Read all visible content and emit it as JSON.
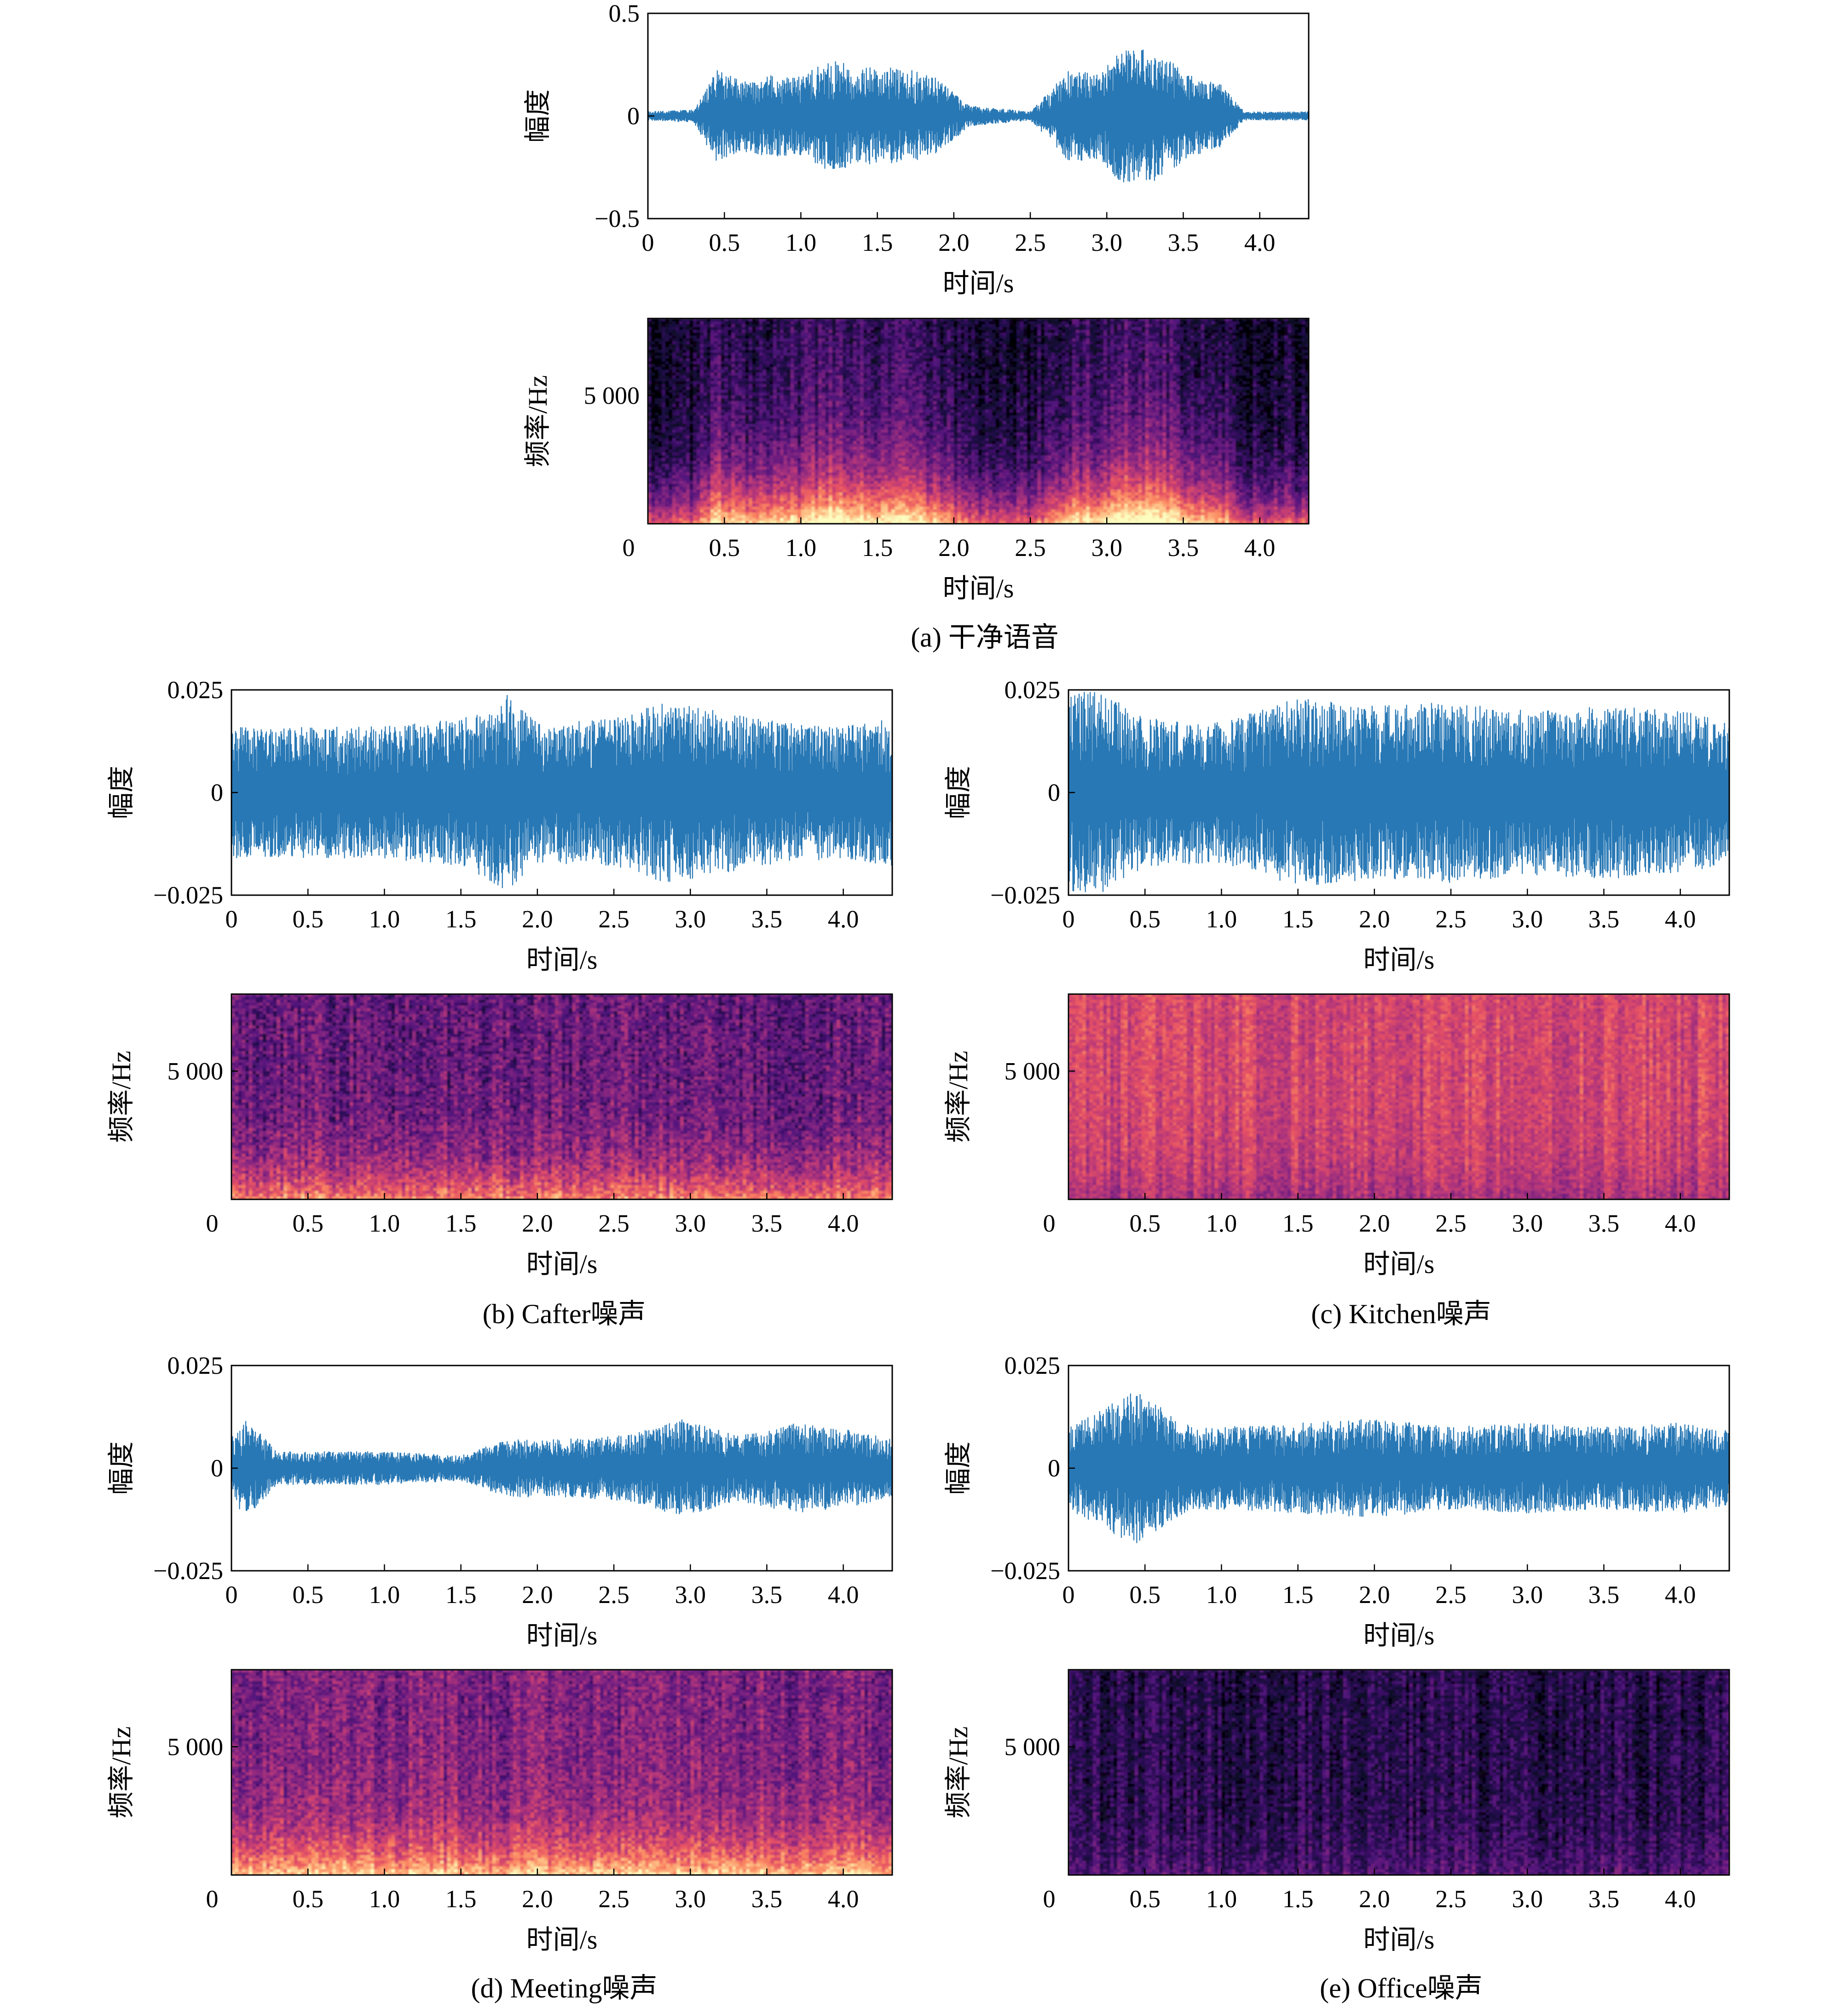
{
  "waveform_common": {
    "xlabel": "时间/s",
    "ylabel": "幅度",
    "xticks": [
      "0",
      "0.5",
      "1.0",
      "1.5",
      "2.0",
      "2.5",
      "3.0",
      "3.5",
      "4.0"
    ],
    "xlim": [
      0,
      4.32
    ],
    "color": "#2878b5"
  },
  "spectrogram_common": {
    "xlabel": "时间/s",
    "ylabel": "频率/Hz",
    "xticks": [
      "0",
      "0.5",
      "1.0",
      "1.5",
      "2.0",
      "2.5",
      "3.0",
      "3.5",
      "4.0"
    ],
    "ytick": "5 000",
    "xlim": [
      0,
      4.32
    ],
    "ylim": [
      0,
      8000
    ],
    "colormap": "magma"
  },
  "panels": [
    {
      "caption": "(a)  干净语音",
      "signal": "干净语音",
      "wave_yticks": [
        "0.5",
        "0",
        "−0.5"
      ],
      "wave_ylim": [
        -0.5,
        0.5
      ]
    },
    {
      "caption": "(b)  Cafter噪声",
      "signal": "Cafter",
      "wave_yticks": [
        "0.025",
        "0",
        "−0.025"
      ],
      "wave_ylim": [
        -0.025,
        0.025
      ]
    },
    {
      "caption": "(c)  Kitchen噪声",
      "signal": "Kitchen",
      "wave_yticks": [
        "0.025",
        "0",
        "−0.025"
      ],
      "wave_ylim": [
        -0.025,
        0.025
      ]
    },
    {
      "caption": "(d)  Meeting噪声",
      "signal": "Meeting",
      "wave_yticks": [
        "0.025",
        "0",
        "−0.025"
      ],
      "wave_ylim": [
        -0.025,
        0.025
      ]
    },
    {
      "caption": "(e)  Office噪声",
      "signal": "Office",
      "wave_yticks": [
        "0.025",
        "0",
        "−0.025"
      ],
      "wave_ylim": [
        -0.025,
        0.025
      ]
    }
  ],
  "chart_data": [
    {
      "type": "line",
      "series": [
        {
          "name": "干净语音",
          "x": [
            0,
            0.3,
            0.45,
            0.6,
            0.8,
            1.0,
            1.2,
            1.35,
            1.5,
            1.7,
            1.9,
            2.1,
            2.5,
            2.75,
            2.95,
            3.1,
            3.3,
            3.55,
            3.75,
            3.9,
            4.32
          ],
          "y": [
            0.02,
            0.03,
            0.23,
            0.17,
            0.2,
            0.19,
            0.28,
            0.24,
            0.24,
            0.23,
            0.18,
            0.05,
            0.02,
            0.22,
            0.21,
            0.33,
            0.32,
            0.2,
            0.15,
            0.02,
            0.02
          ]
        }
      ],
      "xlabel": "时间/s",
      "ylabel": "幅度",
      "xlim": [
        0,
        4.32
      ],
      "ylim": [
        -0.5,
        0.5
      ]
    },
    {
      "type": "heatmap",
      "signal": "干净语音",
      "xlabel": "时间/s",
      "ylabel": "频率/Hz",
      "xlim": [
        0,
        4.32
      ],
      "ylim": [
        0,
        8000
      ]
    },
    {
      "type": "line",
      "series": [
        {
          "name": "Cafter",
          "x": [
            0,
            0.5,
            1.0,
            1.5,
            1.8,
            2.0,
            2.5,
            2.8,
            3.0,
            3.3,
            3.6,
            4.0,
            4.32
          ],
          "y": [
            0.016,
            0.016,
            0.016,
            0.018,
            0.024,
            0.017,
            0.018,
            0.022,
            0.021,
            0.019,
            0.017,
            0.016,
            0.018
          ]
        }
      ],
      "xlabel": "时间/s",
      "ylabel": "幅度",
      "xlim": [
        0,
        4.32
      ],
      "ylim": [
        -0.025,
        0.025
      ]
    },
    {
      "type": "heatmap",
      "signal": "Cafter",
      "xlabel": "时间/s",
      "ylabel": "频率/Hz",
      "xlim": [
        0,
        4.32
      ],
      "ylim": [
        0,
        8000
      ]
    },
    {
      "type": "line",
      "series": [
        {
          "name": "Kitchen",
          "x": [
            0,
            0.2,
            0.5,
            1.0,
            1.5,
            2.0,
            2.5,
            3.0,
            3.5,
            4.0,
            4.32
          ],
          "y": [
            0.024,
            0.025,
            0.018,
            0.017,
            0.023,
            0.021,
            0.022,
            0.02,
            0.021,
            0.02,
            0.017
          ]
        }
      ],
      "xlabel": "时间/s",
      "ylabel": "幅度",
      "xlim": [
        0,
        4.32
      ],
      "ylim": [
        -0.025,
        0.025
      ]
    },
    {
      "type": "heatmap",
      "signal": "Kitchen",
      "xlabel": "时间/s",
      "ylabel": "频率/Hz",
      "xlim": [
        0,
        4.32
      ],
      "ylim": [
        0,
        8000
      ]
    },
    {
      "type": "line",
      "series": [
        {
          "name": "Meeting",
          "x": [
            0,
            0.1,
            0.3,
            0.7,
            1.0,
            1.5,
            1.8,
            2.1,
            2.6,
            2.95,
            3.3,
            3.7,
            4.1,
            4.32
          ],
          "y": [
            0.008,
            0.012,
            0.004,
            0.004,
            0.004,
            0.003,
            0.007,
            0.007,
            0.008,
            0.012,
            0.008,
            0.011,
            0.009,
            0.007
          ]
        }
      ],
      "xlabel": "时间/s",
      "ylabel": "幅度",
      "xlim": [
        0,
        4.32
      ],
      "ylim": [
        -0.025,
        0.025
      ]
    },
    {
      "type": "heatmap",
      "signal": "Meeting",
      "xlabel": "时间/s",
      "ylabel": "频率/Hz",
      "xlim": [
        0,
        4.32
      ],
      "ylim": [
        0,
        8000
      ]
    },
    {
      "type": "line",
      "series": [
        {
          "name": "Office",
          "x": [
            0,
            0.45,
            0.8,
            1.0,
            1.5,
            2.0,
            2.5,
            3.0,
            3.5,
            4.0,
            4.32
          ],
          "y": [
            0.01,
            0.019,
            0.01,
            0.01,
            0.011,
            0.012,
            0.01,
            0.011,
            0.01,
            0.011,
            0.009
          ]
        }
      ],
      "xlabel": "时间/s",
      "ylabel": "幅度",
      "xlim": [
        0,
        4.32
      ],
      "ylim": [
        -0.025,
        0.025
      ]
    },
    {
      "type": "heatmap",
      "signal": "Office",
      "xlabel": "时间/s",
      "ylabel": "频率/Hz",
      "xlim": [
        0,
        4.32
      ],
      "ylim": [
        0,
        8000
      ]
    }
  ]
}
